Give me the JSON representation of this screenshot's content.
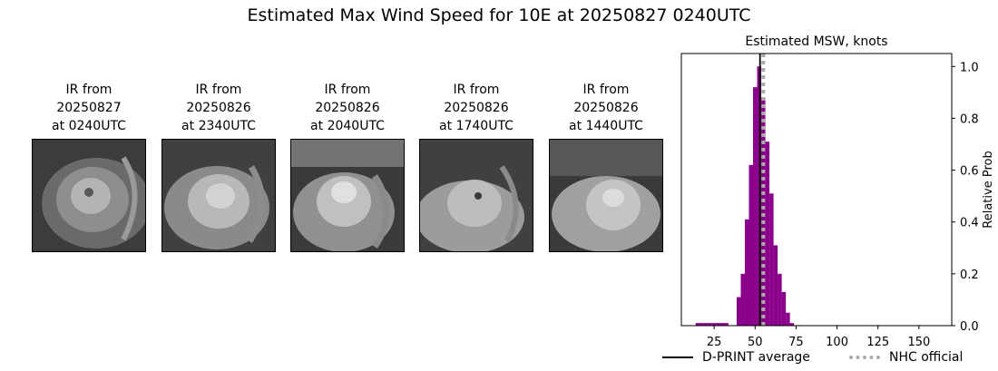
{
  "figure_title": "Estimated Max Wind Speed for 10E at 20250827 0240UTC",
  "ir_panels": [
    {
      "line1": "IR from",
      "line2": "20250827",
      "line3": "at 0240UTC"
    },
    {
      "line1": "IR from",
      "line2": "20250826",
      "line3": "at 2340UTC"
    },
    {
      "line1": "IR from",
      "line2": "20250826",
      "line3": "at 2040UTC"
    },
    {
      "line1": "IR from",
      "line2": "20250826",
      "line3": "at 1740UTC"
    },
    {
      "line1": "IR from",
      "line2": "20250826",
      "line3": "at 1440UTC"
    }
  ],
  "chart_data": {
    "type": "bar",
    "title": "Estimated MSW, knots",
    "xlabel": "",
    "ylabel": "Relative Prob",
    "xlim": [
      5,
      170
    ],
    "ylim": [
      0,
      1.05
    ],
    "xticks": [
      25,
      50,
      75,
      100,
      125,
      150
    ],
    "yticks": [
      0.0,
      0.2,
      0.4,
      0.6,
      0.8,
      1.0
    ],
    "bin_width": 2.5,
    "bar_color": "#8b008b",
    "bins": [
      {
        "x": 15,
        "value": 0.01
      },
      {
        "x": 17.5,
        "value": 0.01
      },
      {
        "x": 20,
        "value": 0.01
      },
      {
        "x": 22.5,
        "value": 0.01
      },
      {
        "x": 25,
        "value": 0.01
      },
      {
        "x": 27.5,
        "value": 0.01
      },
      {
        "x": 30,
        "value": 0.01
      },
      {
        "x": 32.5,
        "value": 0.01
      },
      {
        "x": 40,
        "value": 0.11
      },
      {
        "x": 42.5,
        "value": 0.2
      },
      {
        "x": 45,
        "value": 0.41
      },
      {
        "x": 47.5,
        "value": 0.62
      },
      {
        "x": 50,
        "value": 0.92
      },
      {
        "x": 52.5,
        "value": 1.0
      },
      {
        "x": 55,
        "value": 0.88
      },
      {
        "x": 57.5,
        "value": 0.71
      },
      {
        "x": 60,
        "value": 0.51
      },
      {
        "x": 62.5,
        "value": 0.31
      },
      {
        "x": 65,
        "value": 0.2
      },
      {
        "x": 67.5,
        "value": 0.13
      },
      {
        "x": 70,
        "value": 0.05
      },
      {
        "x": 72.5,
        "value": 0.01
      },
      {
        "x": 77.5,
        "value": 0.002
      },
      {
        "x": 100,
        "value": 0.002
      },
      {
        "x": 125,
        "value": 0.002
      },
      {
        "x": 150,
        "value": 0.002
      },
      {
        "x": 165,
        "value": 0.002
      }
    ],
    "lines": [
      {
        "name": "D-PRINT average",
        "x": 53,
        "color": "#000000",
        "style": "solid"
      },
      {
        "name": "NHC official",
        "x": 55,
        "color": "#a9a9a9",
        "style": "dotted"
      }
    ],
    "legend_position": "bottom"
  }
}
